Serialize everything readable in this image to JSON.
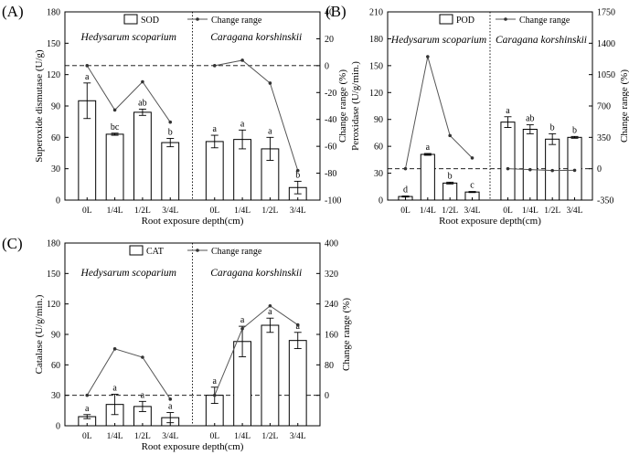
{
  "chart_data": [
    {
      "type": "bar",
      "panel_label": "(A)",
      "title": "",
      "ylabel": "Superoxide dismutase (U/g)",
      "y2label": "Change range (%)",
      "xlabel": "Root exposure depth(cm)",
      "ylim": [
        0,
        180
      ],
      "yticks": [
        0,
        30,
        60,
        90,
        120,
        150,
        180
      ],
      "y2lim": [
        -100,
        40
      ],
      "y2ticks": [
        -100,
        -80,
        -60,
        -40,
        -20,
        0,
        20,
        40
      ],
      "legend": {
        "bar": "SOD",
        "line": "Change range",
        "position": "top-center"
      },
      "groups": [
        {
          "name": "Hedysarum scoparium",
          "categories": [
            "0L",
            "1/4L",
            "1/2L",
            "3/4L"
          ],
          "values": [
            95,
            63,
            84,
            55
          ],
          "errors": [
            17,
            1,
            3,
            4
          ],
          "letters": [
            "a",
            "bc",
            "ab",
            "b"
          ],
          "change": [
            0,
            -33,
            -12,
            -42
          ]
        },
        {
          "name": "Caragana korshinskii",
          "categories": [
            "0L",
            "1/4L",
            "1/2L",
            "3/4L"
          ],
          "values": [
            56,
            58,
            49,
            12
          ],
          "errors": [
            6,
            9,
            11,
            6
          ],
          "letters": [
            "a",
            "a",
            "a",
            "b"
          ],
          "change": [
            0,
            4,
            -13,
            -78
          ]
        }
      ]
    },
    {
      "type": "bar",
      "panel_label": "(B)",
      "title": "",
      "ylabel": "Peroxidase (U/g/min.)",
      "y2label": "Change range (%)",
      "xlabel": "Root exposure depth(cm)",
      "ylim": [
        0,
        210
      ],
      "yticks": [
        0,
        30,
        60,
        90,
        120,
        150,
        180,
        210
      ],
      "y2lim": [
        -350,
        1750
      ],
      "y2ticks": [
        -350,
        0,
        350,
        700,
        1050,
        1400,
        1750
      ],
      "legend": {
        "bar": "POD",
        "line": "Change range",
        "position": "top-center"
      },
      "groups": [
        {
          "name": "Hedysarum scoparium",
          "categories": [
            "0L",
            "1/4L",
            "1/2L",
            "3/4L"
          ],
          "values": [
            4,
            51,
            19,
            9
          ],
          "errors": [
            0.6,
            1,
            1,
            0.6
          ],
          "letters": [
            "d",
            "a",
            "b",
            "c"
          ],
          "change": [
            0,
            1250,
            370,
            120
          ]
        },
        {
          "name": "Caragana korshinskii",
          "categories": [
            "0L",
            "1/4L",
            "1/2L",
            "3/4L"
          ],
          "values": [
            87,
            79,
            68,
            70
          ],
          "errors": [
            6,
            5,
            6,
            1
          ],
          "letters": [
            "a",
            "ab",
            "b",
            "b"
          ],
          "change": [
            0,
            -10,
            -20,
            -18
          ]
        }
      ]
    },
    {
      "type": "bar",
      "panel_label": "(C)",
      "title": "",
      "ylabel": "Catalase (U/g/min.)",
      "y2label": "Change range (%)",
      "xlabel": "Root exposure depth(cm)",
      "ylim": [
        0,
        180
      ],
      "yticks": [
        0,
        30,
        60,
        90,
        120,
        150,
        180
      ],
      "y2lim": [
        -80,
        400
      ],
      "y2ticks": [
        0,
        80,
        160,
        240,
        320,
        400
      ],
      "legend": {
        "bar": "CAT",
        "line": "Change range",
        "position": "top-center"
      },
      "groups": [
        {
          "name": "Hedysarum scoparium",
          "categories": [
            "0L",
            "1/4L",
            "1/2L",
            "3/4L"
          ],
          "values": [
            9,
            21,
            19,
            8
          ],
          "errors": [
            2,
            10,
            5,
            5
          ],
          "letters": [
            "a",
            "a",
            "a",
            "a"
          ],
          "change": [
            0,
            122,
            100,
            -10
          ]
        },
        {
          "name": "Caragana korshinskii",
          "categories": [
            "0L",
            "1/4L",
            "1/2L",
            "3/4L"
          ],
          "values": [
            30,
            83,
            99,
            84
          ],
          "errors": [
            8,
            15,
            7,
            8
          ],
          "letters": [
            "a",
            "a",
            "a",
            "a"
          ],
          "change": [
            0,
            175,
            235,
            185
          ]
        }
      ]
    }
  ]
}
